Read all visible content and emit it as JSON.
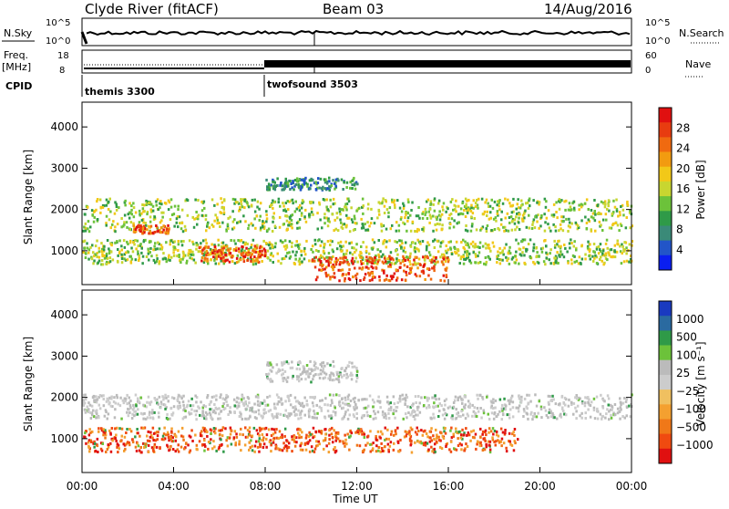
{
  "header": {
    "station": "Clyde River (fitACF)",
    "beam": "Beam 03",
    "date": "14/Aug/2016"
  },
  "top_panels": {
    "nsky_label": "N.Sky",
    "nsky_top": "10^5",
    "nsky_bottom": "10^0",
    "nsearch_label": "N.Search",
    "nsearch_top": "10^5",
    "nsearch_bottom": "10^0",
    "freq_label": "Freq.",
    "freq_unit": "[MHz]",
    "freq_top": "18",
    "freq_bottom": "8",
    "nave_label": "Nave",
    "nave_top": "60",
    "nave_bottom": "0",
    "cpid_label": "CPID",
    "cpid_1": "themis 3300",
    "cpid_2": "twofsound 3503"
  },
  "colors": {
    "power": [
      "#0a1ef0",
      "#2255c8",
      "#3a8a78",
      "#2f9a48",
      "#6cc23a",
      "#c8d630",
      "#f2c818",
      "#f29b10",
      "#f06a10",
      "#e83c10",
      "#e01010"
    ],
    "velocity": [
      "#e01010",
      "#f04a10",
      "#f07818",
      "#f4a030",
      "#f0c060",
      "#cccccc",
      "#bbbbbb",
      "#6cc23a",
      "#2f9a48",
      "#2a6aa0",
      "#1a3ac0"
    ]
  },
  "chart_data": [
    {
      "type": "heatmap",
      "name": "power",
      "ylabel": "Slant Range [km]",
      "ylim": [
        180,
        4600
      ],
      "yticks": [
        "1000",
        "2000",
        "3000",
        "4000"
      ],
      "xlim": [
        0,
        24
      ],
      "colorbar": {
        "label": "Power [dB]",
        "range": [
          0,
          32
        ],
        "ticks": [
          "4",
          "8",
          "12",
          "16",
          "20",
          "24",
          "28"
        ]
      },
      "regions": [
        {
          "t0": 0,
          "t1": 24,
          "r0": 1500,
          "r1": 2300,
          "level": "mid"
        },
        {
          "t0": 0,
          "t1": 24,
          "r0": 700,
          "r1": 1300,
          "level": "mid"
        },
        {
          "t0": 2.2,
          "t1": 3.8,
          "r0": 1450,
          "r1": 1650,
          "level": "high"
        },
        {
          "t0": 5,
          "t1": 8,
          "r0": 750,
          "r1": 1150,
          "level": "high"
        },
        {
          "t0": 8,
          "t1": 12,
          "r0": 2500,
          "r1": 2800,
          "level": "low"
        },
        {
          "t0": 10,
          "t1": 16,
          "r0": 300,
          "r1": 900,
          "level": "high"
        }
      ]
    },
    {
      "type": "heatmap",
      "name": "velocity",
      "ylabel": "Slant Range [km]",
      "ylim": [
        180,
        4600
      ],
      "yticks": [
        "1000",
        "2000",
        "3000",
        "4000"
      ],
      "xlim": [
        0,
        24
      ],
      "xticks": [
        "00:00",
        "04:00",
        "08:00",
        "12:00",
        "16:00",
        "20:00",
        "00:00"
      ],
      "xlabel": "Time UT",
      "colorbar": {
        "label": "Velocity [m s⁻¹]",
        "ticks": [
          "1000",
          "500",
          "100",
          "25",
          "−25",
          "−100",
          "−500",
          "−1000"
        ]
      },
      "regions": [
        {
          "t0": 0,
          "t1": 24,
          "r0": 1500,
          "r1": 2100,
          "level": "gray"
        },
        {
          "t0": 0,
          "t1": 19,
          "r0": 700,
          "r1": 1300,
          "level": "negative"
        },
        {
          "t0": 8,
          "t1": 12,
          "r0": 2400,
          "r1": 2900,
          "level": "gray"
        }
      ]
    }
  ]
}
